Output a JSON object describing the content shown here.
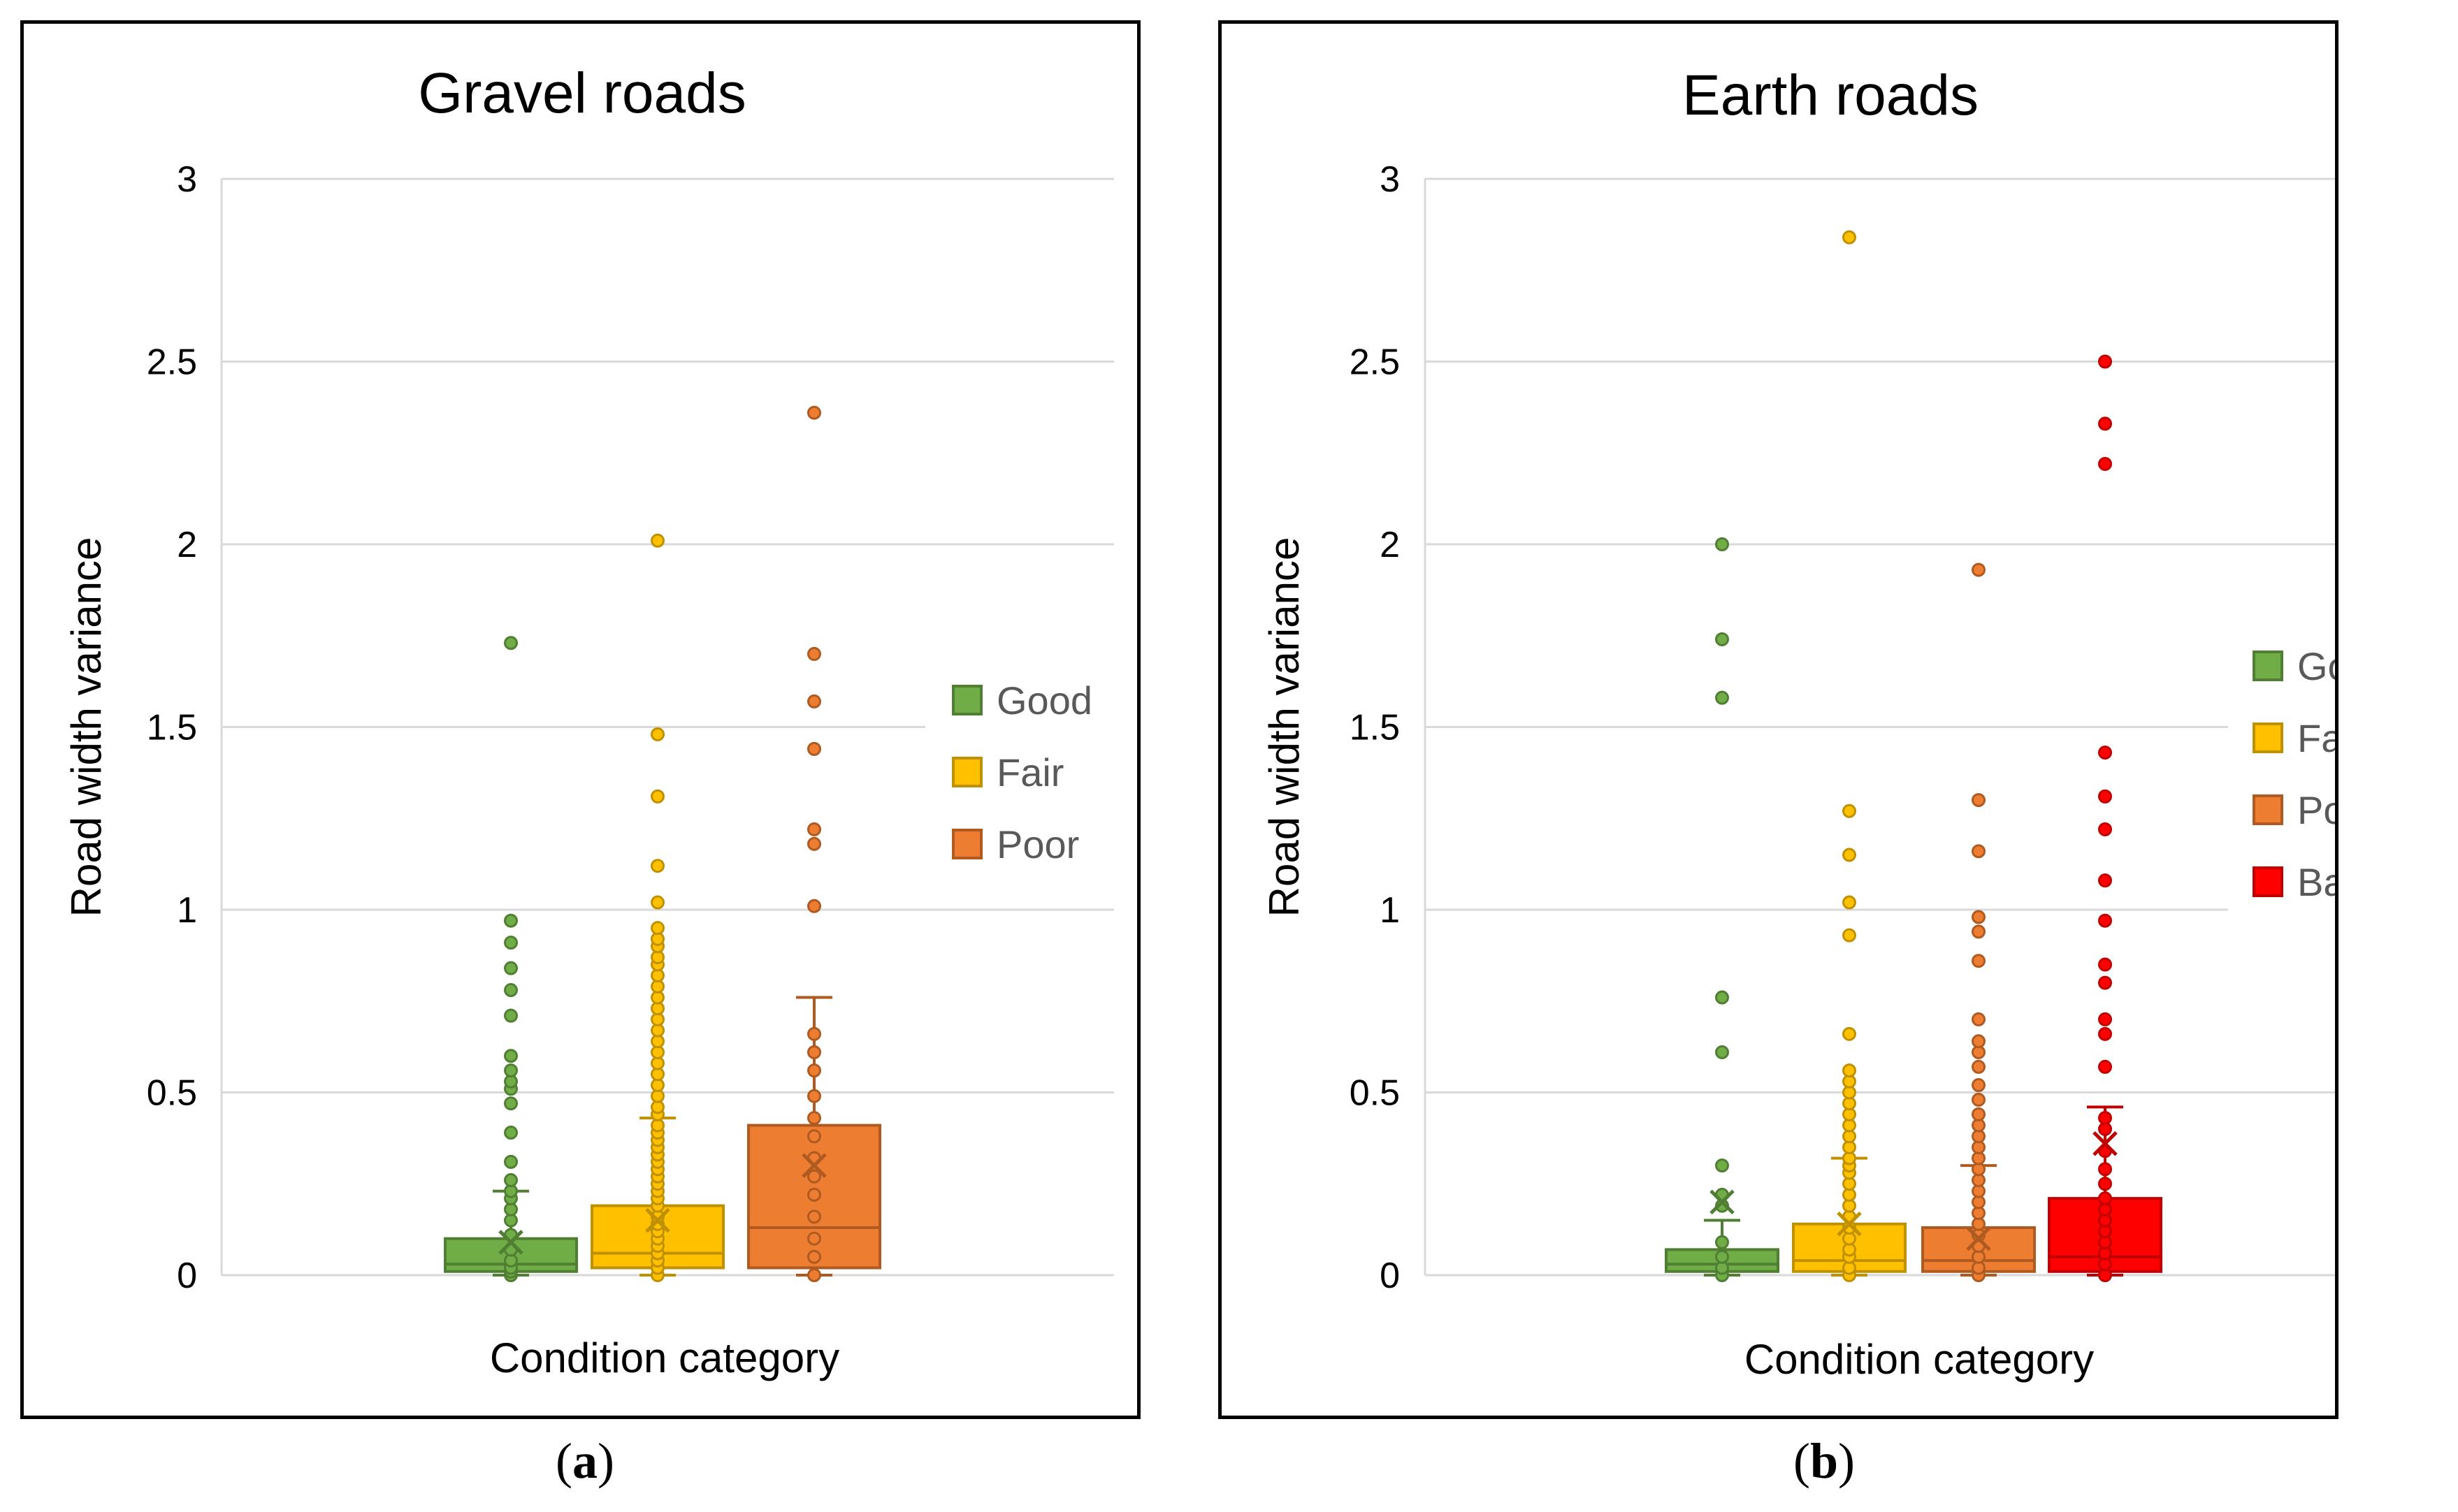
{
  "chart_data": [
    {
      "id": "a",
      "type": "box",
      "title": "Gravel roads",
      "xlabel": "Condition category",
      "ylabel": "Road width variance",
      "ylim": [
        0,
        3
      ],
      "yticks": [
        "0",
        "0.5",
        "1",
        "1.5",
        "2",
        "2.5",
        "3"
      ],
      "ytick_values": [
        0,
        0.5,
        1,
        1.5,
        2,
        2.5,
        3
      ],
      "gridlines": true,
      "legend_position": "right",
      "caption": "a",
      "series": [
        {
          "name": "Good",
          "color": "#70ad47",
          "edge": "#507e32",
          "min": 0,
          "q1": 0.01,
          "median": 0.03,
          "q3": 0.1,
          "whisker_high": 0.23,
          "mean": 0.09,
          "points": [
            0,
            0.01,
            0.02,
            0.04,
            0.07,
            0.11,
            0.15,
            0.18,
            0.21,
            0.23,
            0.26,
            0.31,
            0.39,
            0.47,
            0.51,
            0.53,
            0.56,
            0.6,
            0.71,
            0.78,
            0.84,
            0.91,
            0.97,
            1.73
          ]
        },
        {
          "name": "Fair",
          "color": "#ffc000",
          "edge": "#bf9000",
          "min": 0,
          "q1": 0.02,
          "median": 0.06,
          "q3": 0.19,
          "whisker_high": 0.43,
          "mean": 0.15,
          "points": [
            0,
            0.02,
            0.04,
            0.06,
            0.08,
            0.1,
            0.12,
            0.14,
            0.16,
            0.19,
            0.21,
            0.23,
            0.25,
            0.27,
            0.29,
            0.31,
            0.33,
            0.35,
            0.37,
            0.39,
            0.41,
            0.44,
            0.46,
            0.49,
            0.52,
            0.55,
            0.58,
            0.61,
            0.64,
            0.67,
            0.7,
            0.73,
            0.76,
            0.79,
            0.82,
            0.85,
            0.87,
            0.9,
            0.92,
            0.95,
            1.02,
            1.12,
            1.31,
            1.48,
            2.01
          ]
        },
        {
          "name": "Poor",
          "color": "#ed7d31",
          "edge": "#ae5a21",
          "min": 0,
          "q1": 0.02,
          "median": 0.13,
          "q3": 0.41,
          "whisker_high": 0.76,
          "mean": 0.3,
          "points": [
            0,
            0.05,
            0.1,
            0.16,
            0.22,
            0.27,
            0.32,
            0.38,
            0.43,
            0.49,
            0.56,
            0.61,
            0.66,
            1.01,
            1.18,
            1.22,
            1.44,
            1.57,
            1.7,
            2.36
          ]
        }
      ]
    },
    {
      "id": "b",
      "type": "box",
      "title": "Earth roads",
      "xlabel": "Condition category",
      "ylabel": "Road width variance",
      "ylim": [
        0,
        3
      ],
      "yticks": [
        "0",
        "0.5",
        "1",
        "1.5",
        "2",
        "2.5",
        "3"
      ],
      "ytick_values": [
        0,
        0.5,
        1,
        1.5,
        2,
        2.5,
        3
      ],
      "gridlines": true,
      "legend_position": "right",
      "caption": "b",
      "series": [
        {
          "name": "Good",
          "color": "#70ad47",
          "edge": "#507e32",
          "min": 0,
          "q1": 0.01,
          "median": 0.03,
          "q3": 0.07,
          "whisker_high": 0.15,
          "mean": 0.2,
          "points": [
            0,
            0.02,
            0.05,
            0.09,
            0.19,
            0.22,
            0.3,
            0.61,
            0.76,
            1.58,
            1.74,
            2.0
          ]
        },
        {
          "name": "Fair",
          "color": "#ffc000",
          "edge": "#bf9000",
          "min": 0,
          "q1": 0.01,
          "median": 0.04,
          "q3": 0.14,
          "whisker_high": 0.32,
          "mean": 0.14,
          "points": [
            0,
            0.02,
            0.05,
            0.07,
            0.1,
            0.13,
            0.16,
            0.19,
            0.22,
            0.25,
            0.28,
            0.3,
            0.32,
            0.35,
            0.38,
            0.41,
            0.44,
            0.47,
            0.5,
            0.53,
            0.56,
            0.66,
            0.93,
            1.02,
            1.15,
            1.27,
            2.84
          ]
        },
        {
          "name": "Poor",
          "color": "#ed7d31",
          "edge": "#ae5a21",
          "min": 0,
          "q1": 0.01,
          "median": 0.04,
          "q3": 0.13,
          "whisker_high": 0.3,
          "mean": 0.1,
          "points": [
            0,
            0.02,
            0.05,
            0.08,
            0.11,
            0.14,
            0.17,
            0.2,
            0.23,
            0.26,
            0.29,
            0.32,
            0.35,
            0.38,
            0.41,
            0.44,
            0.48,
            0.52,
            0.57,
            0.61,
            0.64,
            0.7,
            0.86,
            0.94,
            0.98,
            1.16,
            1.3,
            1.93
          ]
        },
        {
          "name": "Bad",
          "color": "#ff0000",
          "edge": "#c00000",
          "min": 0,
          "q1": 0.01,
          "median": 0.05,
          "q3": 0.21,
          "whisker_high": 0.46,
          "mean": 0.36,
          "points": [
            0,
            0.03,
            0.06,
            0.09,
            0.12,
            0.15,
            0.18,
            0.21,
            0.25,
            0.29,
            0.34,
            0.4,
            0.43,
            0.57,
            0.66,
            0.7,
            0.8,
            0.85,
            0.97,
            1.08,
            1.22,
            1.31,
            1.43,
            2.22,
            2.33,
            2.5
          ]
        }
      ]
    }
  ]
}
